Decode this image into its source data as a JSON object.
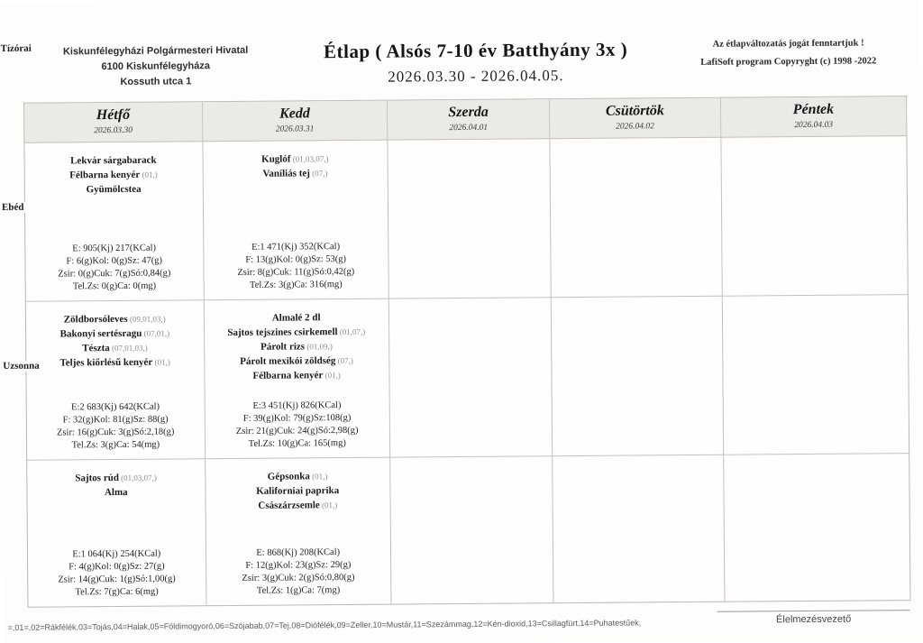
{
  "header": {
    "org_line1": "Kiskunfélegyházi Polgármesteri Hivatal",
    "org_line2": "6100 Kiskunfélegyháza",
    "org_line3": "Kossuth utca 1",
    "title": "Étlap ( Alsós 7-10 év Batthyány 3x )",
    "date_range": "2026.03.30 -  2026.04.05.",
    "notice": "Az étlapváltozatás jogát fenntartjuk !",
    "copyright": "LafiSoft program  Copyryght (c) 1998 -2022"
  },
  "meal_labels": [
    "Tízórai",
    "Ebéd",
    "Uzsonna"
  ],
  "days": [
    {
      "name": "Hétfő",
      "date": "2026.03.30",
      "meals": [
        {
          "items": [
            {
              "name": "Lekvár sárgabarack",
              "codes": ""
            },
            {
              "name": "Félbarna kenyér",
              "codes": "(01,)"
            },
            {
              "name": "Gyümölcstea",
              "codes": ""
            }
          ],
          "nutrition": [
            "E: 905(Kj)  217(KCal)",
            "F:  6(g)Kol:  0(g)Sz: 47(g)",
            "Zsir:  0(g)Cuk:  7(g)Só:0,84(g)",
            "Tel.Zs:  0(g)Ca:   0(mg)"
          ]
        },
        {
          "items": [
            {
              "name": "Zöldborsóleves",
              "codes": "(09,01,03,)"
            },
            {
              "name": "Bakonyi sertésragu",
              "codes": "(07,01,)"
            },
            {
              "name": "Tészta",
              "codes": "(07,01,03,)"
            },
            {
              "name": "Teljes kiőrlésű kenyér",
              "codes": "(01,)"
            }
          ],
          "nutrition": [
            "E:2 683(Kj)  642(KCal)",
            "F: 32(g)Kol: 81(g)Sz: 88(g)",
            "Zsir: 16(g)Cuk:  3(g)Só:2,18(g)",
            "Tel.Zs:  3(g)Ca:  54(mg)"
          ]
        },
        {
          "items": [
            {
              "name": "Sajtos rúd",
              "codes": "(01,03,07,)"
            },
            {
              "name": "Alma",
              "codes": ""
            }
          ],
          "nutrition": [
            "E:1 064(Kj)  254(KCal)",
            "F:  4(g)Kol:  0(g)Sz: 27(g)",
            "Zsir: 14(g)Cuk:  1(g)Só:1,00(g)",
            "Tel.Zs:  7(g)Ca:   6(mg)"
          ]
        }
      ]
    },
    {
      "name": "Kedd",
      "date": "2026.03.31",
      "meals": [
        {
          "items": [
            {
              "name": "Kuglóf",
              "codes": "(01,03,07,)"
            },
            {
              "name": "Vaníliás tej",
              "codes": "(07,)"
            }
          ],
          "nutrition": [
            "E:1 471(Kj)  352(KCal)",
            "F: 13(g)Kol:  0(g)Sz: 53(g)",
            "Zsir:  8(g)Cuk: 11(g)Só:0,42(g)",
            "Tel.Zs:  3(g)Ca: 316(mg)"
          ]
        },
        {
          "items": [
            {
              "name": "Almalé 2 dl",
              "codes": ""
            },
            {
              "name": "Sajtos tejszines csirkemell",
              "codes": "(01,07,)"
            },
            {
              "name": "Párolt rizs",
              "codes": "(01,09,)"
            },
            {
              "name": "Párolt mexikói zöldség",
              "codes": "(07,)"
            },
            {
              "name": "Félbarna kenyér",
              "codes": "(01,)"
            }
          ],
          "nutrition": [
            "E:3 451(Kj)  826(KCal)",
            "F: 39(g)Kol: 79(g)Sz:108(g)",
            "Zsir: 21(g)Cuk: 24(g)Só:2,98(g)",
            "Tel.Zs: 10(g)Ca: 165(mg)"
          ]
        },
        {
          "items": [
            {
              "name": "Gépsonka",
              "codes": "(01,)"
            },
            {
              "name": "Kaliforniai paprika",
              "codes": ""
            },
            {
              "name": "Császárzsemle",
              "codes": "(01,)"
            }
          ],
          "nutrition": [
            "E: 868(Kj)  208(KCal)",
            "F: 12(g)Kol: 23(g)Sz: 29(g)",
            "Zsir:  3(g)Cuk:  2(g)Só:0,80(g)",
            "Tel.Zs:  1(g)Ca:   7(mg)"
          ]
        }
      ]
    },
    {
      "name": "Szerda",
      "date": "2026.04.01",
      "meals": [
        {
          "items": [],
          "nutrition": []
        },
        {
          "items": [],
          "nutrition": []
        },
        {
          "items": [],
          "nutrition": []
        }
      ]
    },
    {
      "name": "Csütörtök",
      "date": "2026.04.02",
      "meals": [
        {
          "items": [],
          "nutrition": []
        },
        {
          "items": [],
          "nutrition": []
        },
        {
          "items": [],
          "nutrition": []
        }
      ]
    },
    {
      "name": "Péntek",
      "date": "2026.04.03",
      "meals": [
        {
          "items": [],
          "nutrition": []
        },
        {
          "items": [],
          "nutrition": []
        },
        {
          "items": [],
          "nutrition": []
        }
      ]
    }
  ],
  "footer": {
    "legend": "=,01=,02=Rákfélék,03=Tojás,04=Halak,05=Földimogyoró,06=Szójabab,07=Tej,08=Diófélék,09=Zeller,10=Mustár,11=Szezámmag,12=Kén-dioxid,13=Csillagfürt,14=Puhatestűek,",
    "signature_label": "Élelmezésvezető"
  }
}
